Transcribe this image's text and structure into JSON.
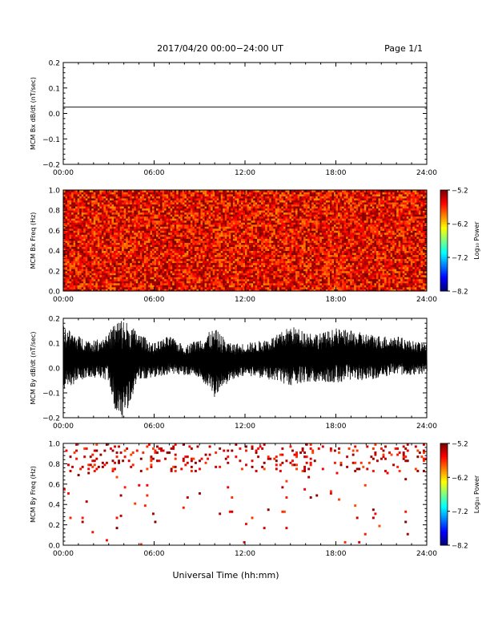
{
  "header": {
    "title": "2017/04/20  00:00−24:00 UT",
    "page": "Page 1/1"
  },
  "xlabel": "Universal Time (hh:mm)",
  "chart_data": [
    {
      "type": "line",
      "ylabel": "MCM Bx dB/dt (nT/sec)",
      "xlim": [
        0,
        24
      ],
      "ylim": [
        -0.2,
        0.2
      ],
      "x_ticks": [
        "00:00",
        "06:00",
        "12:00",
        "18:00",
        "24:00"
      ],
      "y_ticks": [
        "0.2",
        "0.1",
        "0.0",
        "−0.1",
        "−0.2"
      ],
      "series": [
        {
          "x": [
            0,
            24
          ],
          "values": [
            0.025,
            0.025
          ]
        }
      ]
    },
    {
      "type": "heatmap",
      "ylabel": "MCM Bx Freq (Hz)",
      "xlim": [
        0,
        24
      ],
      "ylim": [
        0,
        1.0
      ],
      "x_ticks": [
        "00:00",
        "06:00",
        "12:00",
        "18:00",
        "24:00"
      ],
      "y_ticks": [
        "1.0",
        "0.8",
        "0.6",
        "0.4",
        "0.2",
        "0.0"
      ],
      "colorbar": {
        "label": "Log₁₀ Power",
        "range": [
          -8.2,
          -5.2
        ],
        "ticks": [
          "−5.2",
          "−6.2",
          "−7.2",
          "−8.2"
        ]
      },
      "typical_value": -5.5,
      "coverage": "dense"
    },
    {
      "type": "line",
      "ylabel": "MCM By dB/dt (nT/sec)",
      "xlim": [
        0,
        24
      ],
      "ylim": [
        -0.2,
        0.2
      ],
      "x_ticks": [
        "00:00",
        "06:00",
        "12:00",
        "18:00",
        "24:00"
      ],
      "y_ticks": [
        "0.2",
        "0.1",
        "0.0",
        "−0.1",
        "−0.2"
      ],
      "series": [
        {
          "x": [
            0,
            1,
            2,
            3,
            3.5,
            4,
            5,
            6,
            7,
            8,
            9,
            10,
            11,
            12,
            13,
            14,
            15,
            16,
            17,
            18,
            19,
            20,
            21,
            22,
            23,
            24
          ],
          "upper": [
            0.17,
            0.13,
            0.11,
            0.14,
            0.2,
            0.2,
            0.14,
            0.1,
            0.13,
            0.09,
            0.12,
            0.16,
            0.1,
            0.1,
            0.11,
            0.13,
            0.17,
            0.15,
            0.14,
            0.16,
            0.15,
            0.14,
            0.13,
            0.13,
            0.11,
            0.1
          ],
          "lower": [
            -0.1,
            -0.05,
            -0.04,
            -0.05,
            -0.2,
            -0.2,
            -0.05,
            -0.04,
            -0.03,
            -0.03,
            -0.04,
            -0.12,
            -0.05,
            -0.03,
            -0.04,
            -0.06,
            -0.07,
            -0.06,
            -0.06,
            -0.06,
            -0.05,
            -0.05,
            -0.04,
            -0.03,
            -0.03,
            -0.02
          ]
        }
      ]
    },
    {
      "type": "heatmap",
      "ylabel": "MCM By Freq (Hz)",
      "xlim": [
        0,
        24
      ],
      "ylim": [
        0,
        1.0
      ],
      "x_ticks": [
        "00:00",
        "06:00",
        "12:00",
        "18:00",
        "24:00"
      ],
      "y_ticks": [
        "1.0",
        "0.8",
        "0.6",
        "0.4",
        "0.2",
        "0.0"
      ],
      "colorbar": {
        "label": "Log₁₀ Power",
        "range": [
          -8.2,
          -5.2
        ],
        "ticks": [
          "−5.2",
          "−6.2",
          "−7.2",
          "−8.2"
        ]
      },
      "typical_value": -5.3,
      "coverage": "sparse, concentrated at 0.7–1.0 Hz"
    }
  ]
}
